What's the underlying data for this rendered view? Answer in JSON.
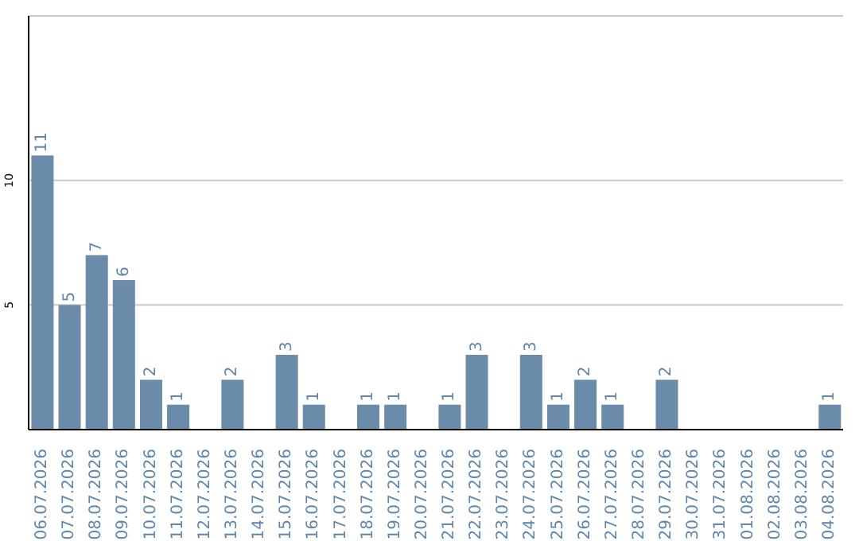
{
  "chart_data": {
    "type": "bar",
    "categories": [
      "06.07.2026",
      "07.07.2026",
      "08.07.2026",
      "09.07.2026",
      "10.07.2026",
      "11.07.2026",
      "12.07.2026",
      "13.07.2026",
      "14.07.2026",
      "15.07.2026",
      "16.07.2026",
      "17.07.2026",
      "18.07.2026",
      "19.07.2026",
      "20.07.2026",
      "21.07.2026",
      "22.07.2026",
      "23.07.2026",
      "24.07.2026",
      "25.07.2026",
      "26.07.2026",
      "27.07.2026",
      "28.07.2026",
      "29.07.2026",
      "30.07.2026",
      "31.07.2026",
      "01.08.2026",
      "02.08.2026",
      "03.08.2026",
      "04.08.2026"
    ],
    "values": [
      11,
      5,
      7,
      6,
      2,
      1,
      0,
      2,
      0,
      3,
      1,
      0,
      1,
      1,
      0,
      1,
      3,
      0,
      3,
      1,
      2,
      1,
      0,
      2,
      0,
      0,
      0,
      0,
      0,
      1
    ],
    "value_labels": [
      "11",
      "5",
      "7",
      "6",
      "2",
      "1",
      null,
      "2",
      null,
      "3",
      "1",
      null,
      "1",
      "1",
      null,
      "1",
      "3",
      null,
      "3",
      "1",
      "2",
      "1",
      null,
      "2",
      null,
      null,
      null,
      null,
      null,
      "1"
    ],
    "color": "#6b8bab",
    "ylim": [
      0,
      16.6
    ],
    "yticks": [
      5,
      10
    ],
    "grid": "y"
  }
}
